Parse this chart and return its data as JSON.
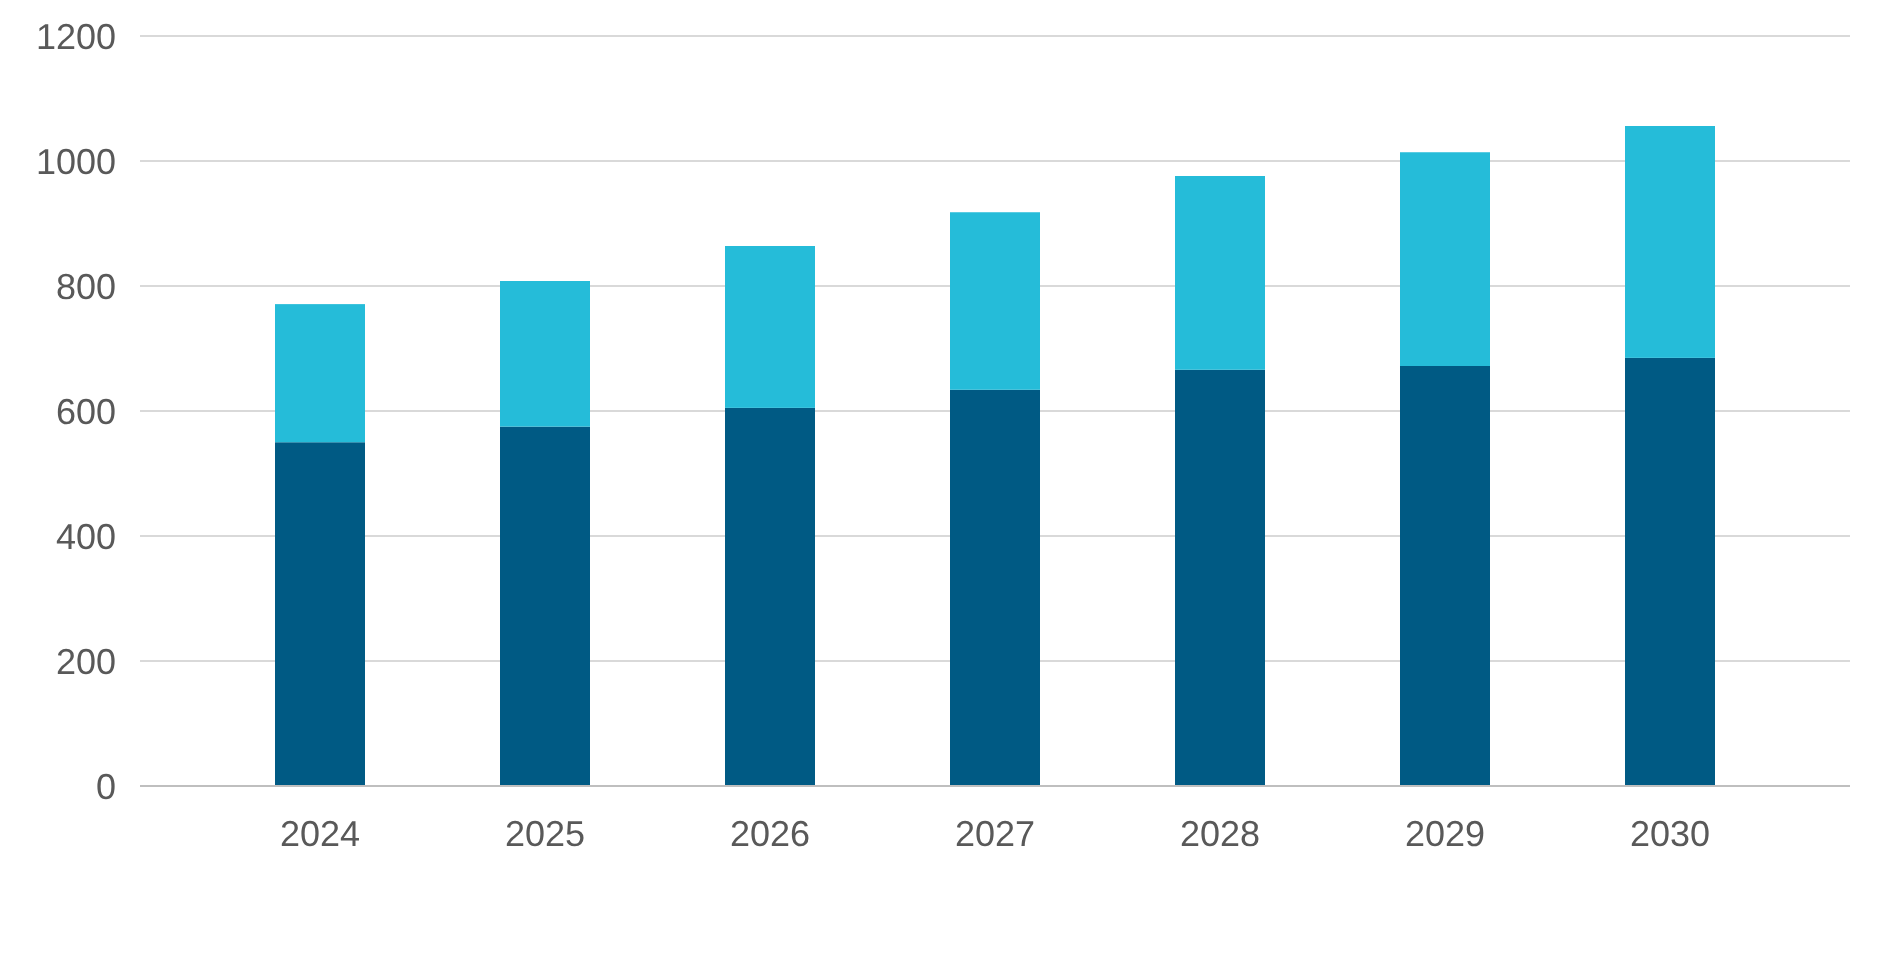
{
  "chart_data": {
    "type": "bar",
    "stacked": true,
    "categories": [
      "2024",
      "2025",
      "2026",
      "2027",
      "2028",
      "2029",
      "2030"
    ],
    "series": [
      {
        "color": "#005a84",
        "values": [
          550,
          575,
          605,
          634,
          666,
          672,
          685
        ]
      },
      {
        "color": "#25bcd9",
        "values": [
          221,
          233,
          259,
          284,
          310,
          342,
          371
        ]
      }
    ],
    "ylim": [
      0,
      1200
    ],
    "yticks": [
      0,
      200,
      400,
      600,
      800,
      1000,
      1200
    ],
    "grid": "y"
  }
}
